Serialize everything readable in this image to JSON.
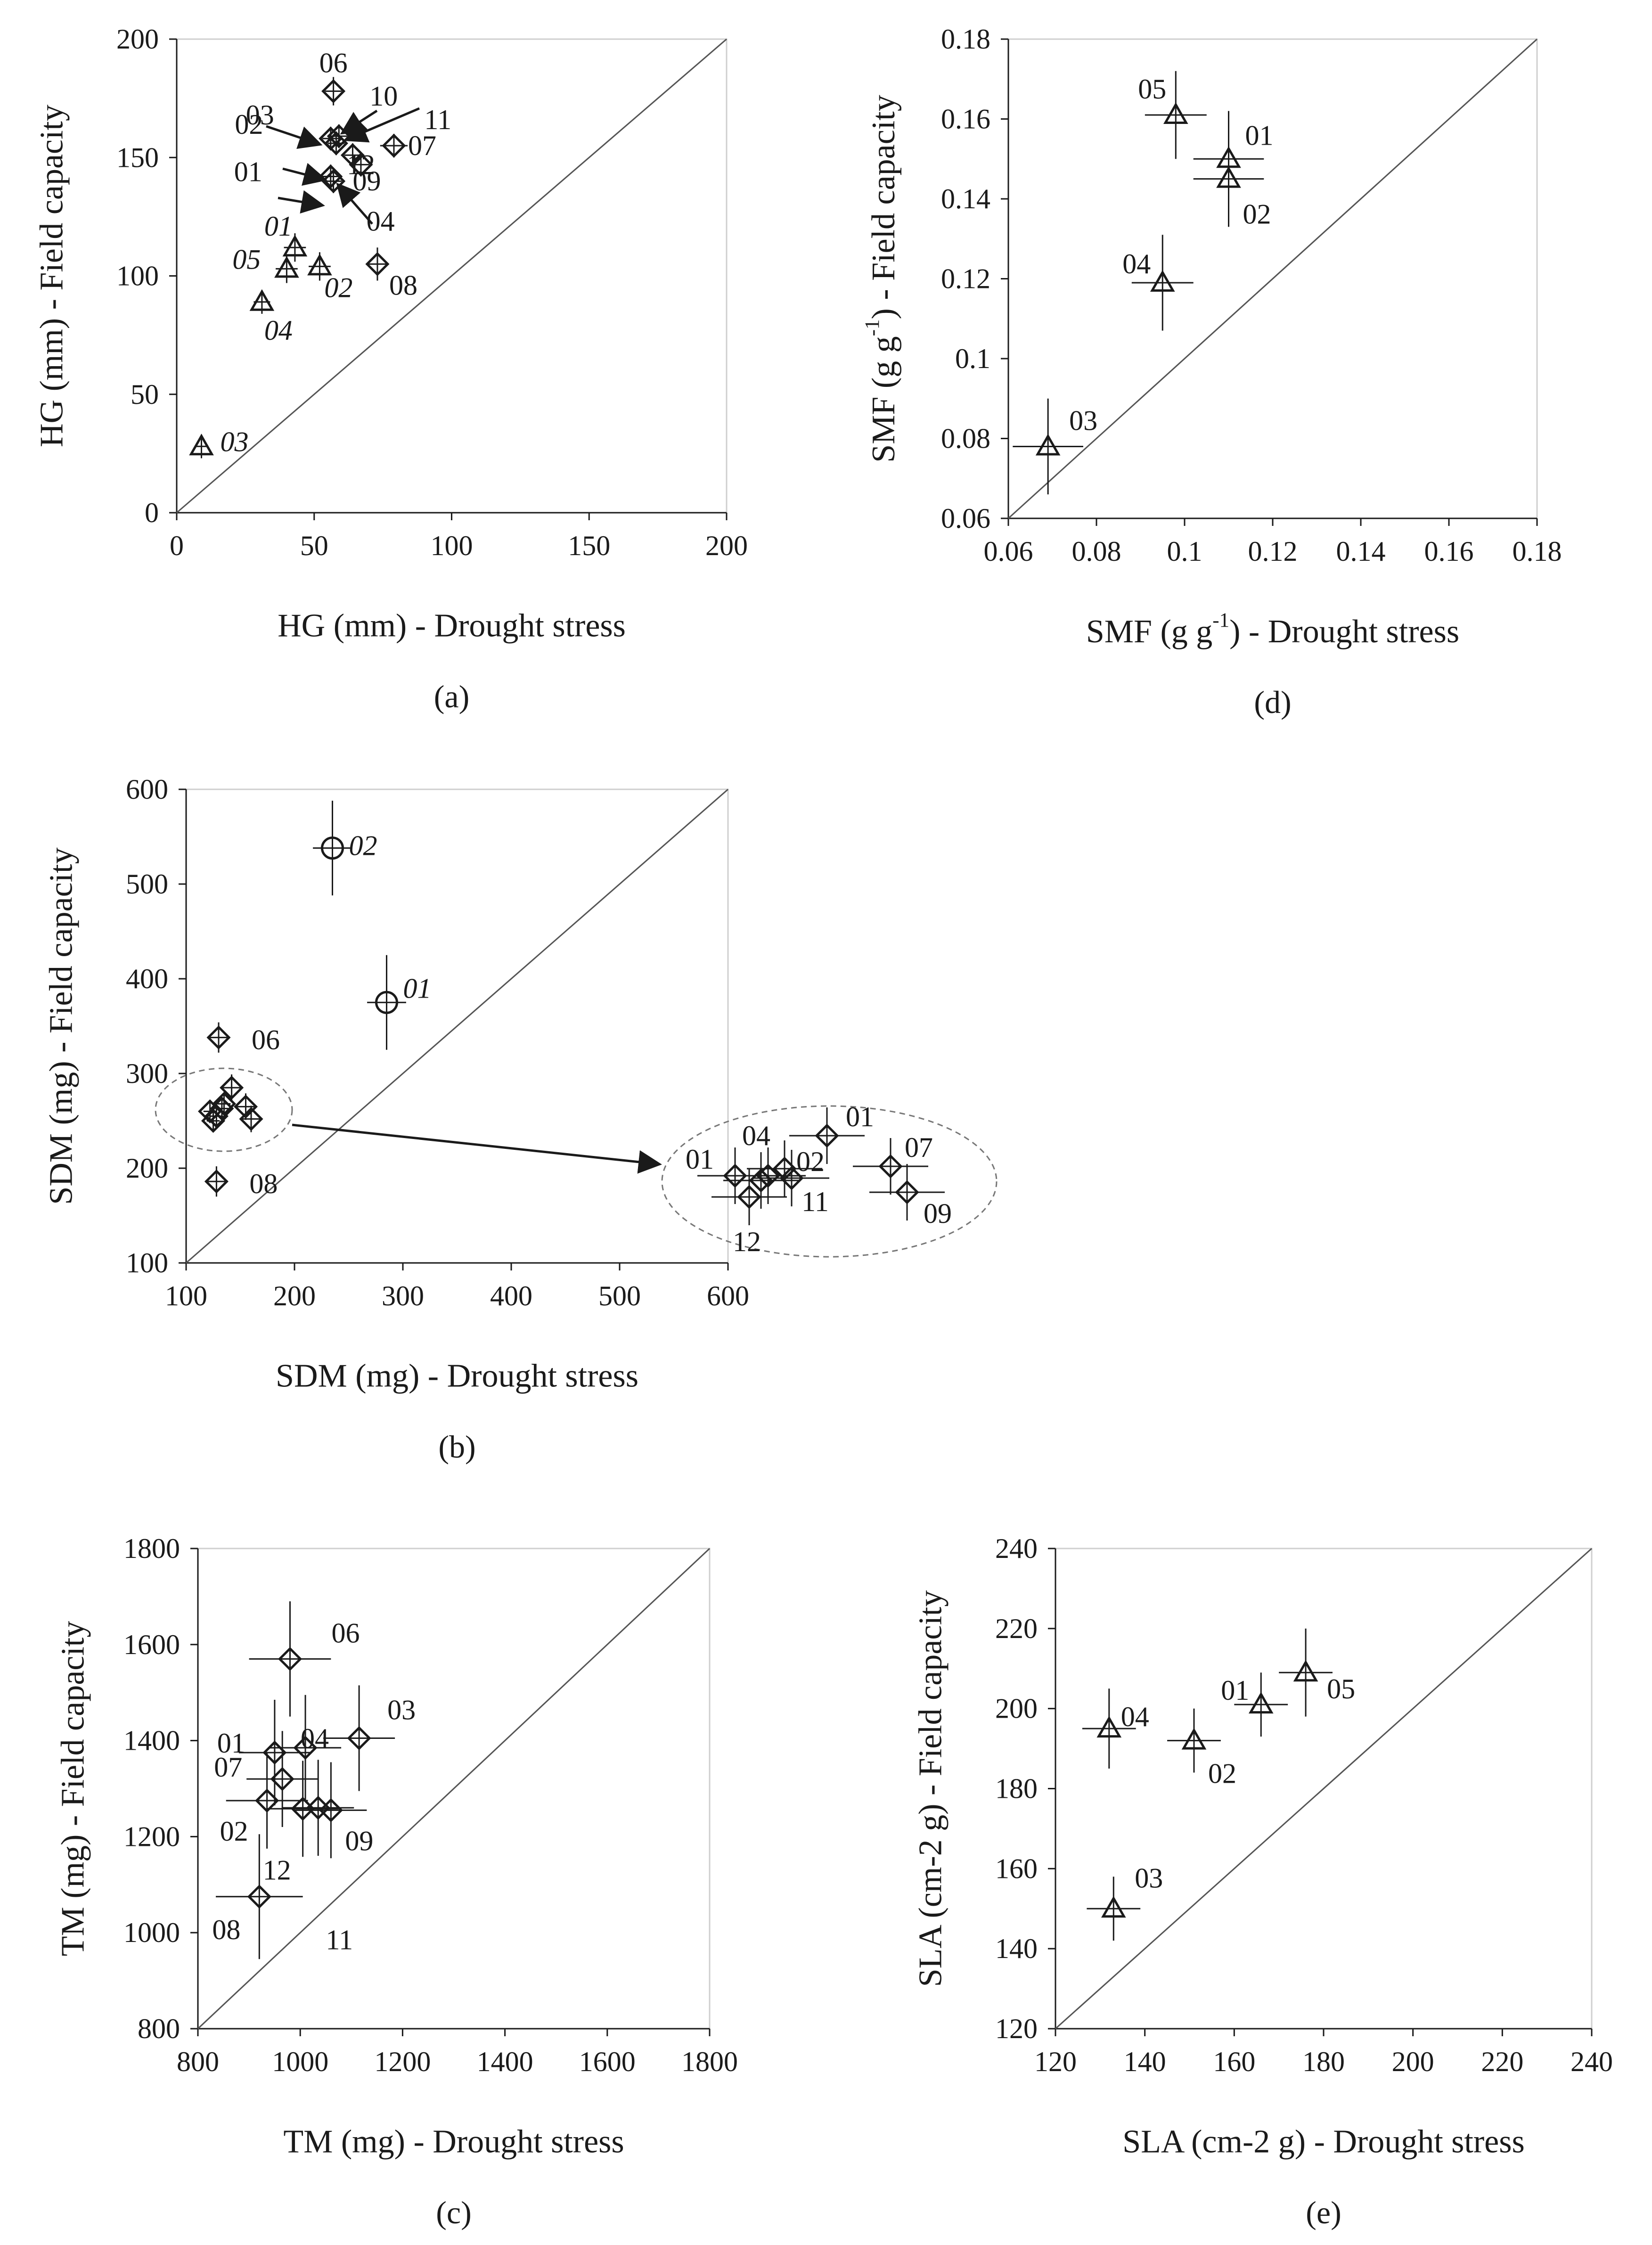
{
  "chart_data": [
    {
      "id": "a",
      "type": "scatter",
      "panel_label": "(a)",
      "xlabel": "HG (mm) - Drought stress",
      "ylabel": "HG (mm) - Field capacity",
      "xlim": [
        0,
        200
      ],
      "ylim": [
        0,
        200
      ],
      "xticks": [
        "0",
        "50",
        "100",
        "150",
        "200"
      ],
      "yticks": [
        "0",
        "50",
        "100",
        "150",
        "200"
      ],
      "diagonal": true,
      "points": [
        {
          "label": "06",
          "x": 57,
          "y": 178,
          "marker": "diamond",
          "xerr": 3,
          "yerr": 6
        },
        {
          "label": "03",
          "x": 56,
          "y": 158,
          "marker": "diamond",
          "xerr": 3,
          "yerr": 5
        },
        {
          "label": "10",
          "x": 59,
          "y": 159,
          "marker": "diamond",
          "xerr": 3,
          "yerr": 5
        },
        {
          "label": "11",
          "x": 65,
          "y": 162,
          "marker": "diamond",
          "xerr": 4,
          "yerr": 5
        },
        {
          "label": "02",
          "x": 58,
          "y": 156,
          "marker": "diamond",
          "xerr": 3,
          "yerr": 5
        },
        {
          "label": "07",
          "x": 79,
          "y": 155,
          "marker": "diamond",
          "xerr": 5,
          "yerr": 5
        },
        {
          "label": "01",
          "x": 56,
          "y": 142,
          "marker": "diamond",
          "xerr": 3,
          "yerr": 5
        },
        {
          "label": "09",
          "x": 64,
          "y": 151,
          "marker": "diamond",
          "xerr": 3,
          "yerr": 5
        },
        {
          "label": "12",
          "x": 67,
          "y": 147,
          "marker": "diamond",
          "xerr": 3,
          "yerr": 5
        },
        {
          "label": "04",
          "x": 57,
          "y": 140,
          "marker": "diamond",
          "xerr": 3,
          "yerr": 5
        },
        {
          "label": "08",
          "x": 73,
          "y": 105,
          "marker": "diamond",
          "xerr": 4,
          "yerr": 7
        },
        {
          "label": "01",
          "x": 43,
          "y": 112,
          "marker": "triangle",
          "italic": true,
          "xerr": 4,
          "yerr": 6
        },
        {
          "label": "05",
          "x": 40,
          "y": 103,
          "marker": "triangle",
          "italic": true,
          "xerr": 4,
          "yerr": 6
        },
        {
          "label": "02",
          "x": 52,
          "y": 104,
          "marker": "triangle",
          "italic": true,
          "xerr": 4,
          "yerr": 6
        },
        {
          "label": "04",
          "x": 31,
          "y": 89,
          "marker": "triangle",
          "italic": true,
          "xerr": 3,
          "yerr": 5
        },
        {
          "label": "03",
          "x": 9,
          "y": 28,
          "marker": "triangle",
          "italic": true,
          "xerr": 2,
          "yerr": 5
        }
      ]
    },
    {
      "id": "b",
      "type": "scatter",
      "panel_label": "(b)",
      "xlabel": "SDM (mg) - Drought stress",
      "ylabel": "SDM (mg) - Field capacity",
      "xlim": [
        100,
        600
      ],
      "ylim": [
        100,
        600
      ],
      "xticks": [
        "100",
        "200",
        "300",
        "400",
        "500",
        "600"
      ],
      "yticks": [
        "100",
        "200",
        "300",
        "400",
        "500",
        "600"
      ],
      "diagonal": true,
      "points": [
        {
          "label": "02",
          "x": 235,
          "y": 538,
          "marker": "circle",
          "italic": true,
          "xerr": 18,
          "yerr": 50
        },
        {
          "label": "01",
          "x": 285,
          "y": 375,
          "marker": "circle",
          "italic": true,
          "xerr": 18,
          "yerr": 50
        },
        {
          "label": "06",
          "x": 130,
          "y": 338,
          "marker": "diamond",
          "xerr": 8,
          "yerr": 16
        },
        {
          "label": "08",
          "x": 128,
          "y": 186,
          "marker": "diamond",
          "xerr": 8,
          "yerr": 16
        },
        {
          "label": "",
          "x": 122,
          "y": 260,
          "marker": "diamond",
          "xerr": 6,
          "yerr": 12
        },
        {
          "label": "",
          "x": 128,
          "y": 255,
          "marker": "diamond",
          "xerr": 6,
          "yerr": 12
        },
        {
          "label": "",
          "x": 133,
          "y": 263,
          "marker": "diamond",
          "xerr": 6,
          "yerr": 12
        },
        {
          "label": "",
          "x": 125,
          "y": 250,
          "marker": "diamond",
          "xerr": 6,
          "yerr": 12
        },
        {
          "label": "",
          "x": 142,
          "y": 285,
          "marker": "diamond",
          "xerr": 8,
          "yerr": 14
        },
        {
          "label": "",
          "x": 155,
          "y": 265,
          "marker": "diamond",
          "xerr": 8,
          "yerr": 14
        },
        {
          "label": "",
          "x": 160,
          "y": 252,
          "marker": "diamond",
          "xerr": 8,
          "yerr": 14
        },
        {
          "label": "",
          "x": 135,
          "y": 268,
          "marker": "diamond",
          "xerr": 6,
          "yerr": 12
        }
      ],
      "inset_labels": [
        "01",
        "04",
        "02",
        "01",
        "07",
        "11",
        "09",
        "12"
      ]
    },
    {
      "id": "c",
      "type": "scatter",
      "panel_label": "(c)",
      "xlabel": "TM (mg) - Drought stress",
      "ylabel": "TM (mg) - Field capacity",
      "xlim": [
        800,
        1800
      ],
      "ylim": [
        800,
        1800
      ],
      "xticks": [
        "800",
        "1000",
        "1200",
        "1400",
        "1600",
        "1800"
      ],
      "yticks": [
        "800",
        "1000",
        "1200",
        "1400",
        "1600",
        "1800"
      ],
      "diagonal": true,
      "points": [
        {
          "label": "06",
          "x": 980,
          "y": 1570,
          "marker": "diamond",
          "xerr": 80,
          "yerr": 120
        },
        {
          "label": "03",
          "x": 1115,
          "y": 1405,
          "marker": "diamond",
          "xerr": 70,
          "yerr": 110
        },
        {
          "label": "01",
          "x": 950,
          "y": 1375,
          "marker": "diamond",
          "xerr": 70,
          "yerr": 110
        },
        {
          "label": "04",
          "x": 1010,
          "y": 1385,
          "marker": "diamond",
          "xerr": 70,
          "yerr": 110
        },
        {
          "label": "07",
          "x": 965,
          "y": 1320,
          "marker": "diamond",
          "xerr": 70,
          "yerr": 100
        },
        {
          "label": "02",
          "x": 935,
          "y": 1275,
          "marker": "diamond",
          "xerr": 80,
          "yerr": 100
        },
        {
          "label": "12",
          "x": 1005,
          "y": 1258,
          "marker": "diamond",
          "xerr": 70,
          "yerr": 100
        },
        {
          "label": "11",
          "x": 1035,
          "y": 1260,
          "marker": "diamond",
          "xerr": 70,
          "yerr": 100
        },
        {
          "label": "09",
          "x": 1060,
          "y": 1255,
          "marker": "diamond",
          "xerr": 70,
          "yerr": 100
        },
        {
          "label": "08",
          "x": 920,
          "y": 1075,
          "marker": "diamond",
          "xerr": 85,
          "yerr": 130
        }
      ]
    },
    {
      "id": "d",
      "type": "scatter",
      "panel_label": "(d)",
      "xlabel": "SMF (g g-1) - Drought stress",
      "ylabel": "SMF (g g-1) - Field capacity",
      "xlim": [
        0.06,
        0.18
      ],
      "ylim": [
        0.06,
        0.18
      ],
      "xticks": [
        "0.06",
        "0.08",
        "0.1",
        "0.12",
        "0.14",
        "0.16",
        "0.18"
      ],
      "yticks": [
        "0.06",
        "0.08",
        "0.1",
        "0.12",
        "0.14",
        "0.16",
        "0.18"
      ],
      "diagonal": true,
      "points": [
        {
          "label": "05",
          "x": 0.098,
          "y": 0.161,
          "marker": "triangle",
          "xerr": 0.007,
          "yerr": 0.011
        },
        {
          "label": "01",
          "x": 0.11,
          "y": 0.15,
          "marker": "triangle",
          "xerr": 0.008,
          "yerr": 0.012
        },
        {
          "label": "02",
          "x": 0.11,
          "y": 0.145,
          "marker": "triangle",
          "xerr": 0.008,
          "yerr": 0.012
        },
        {
          "label": "04",
          "x": 0.095,
          "y": 0.119,
          "marker": "triangle",
          "xerr": 0.007,
          "yerr": 0.012
        },
        {
          "label": "03",
          "x": 0.069,
          "y": 0.078,
          "marker": "triangle",
          "xerr": 0.008,
          "yerr": 0.012
        }
      ]
    },
    {
      "id": "e",
      "type": "scatter",
      "panel_label": "(e)",
      "xlabel": "SLA (cm-2 g) - Drought stress",
      "ylabel": "SLA (cm-2 g) - Field capacity",
      "xlim": [
        120,
        240
      ],
      "ylim": [
        120,
        240
      ],
      "xticks": [
        "120",
        "140",
        "160",
        "180",
        "200",
        "220",
        "240"
      ],
      "yticks": [
        "120",
        "140",
        "160",
        "180",
        "200",
        "220",
        "240"
      ],
      "diagonal": true,
      "points": [
        {
          "label": "04",
          "x": 132,
          "y": 195,
          "marker": "triangle",
          "xerr": 6,
          "yerr": 10
        },
        {
          "label": "02",
          "x": 151,
          "y": 192,
          "marker": "triangle",
          "xerr": 6,
          "yerr": 8
        },
        {
          "label": "01",
          "x": 166,
          "y": 201,
          "marker": "triangle",
          "xerr": 6,
          "yerr": 8
        },
        {
          "label": "05",
          "x": 176,
          "y": 209,
          "marker": "triangle",
          "xerr": 6,
          "yerr": 11
        },
        {
          "label": "03",
          "x": 133,
          "y": 150,
          "marker": "triangle",
          "xerr": 6,
          "yerr": 8
        }
      ]
    }
  ]
}
